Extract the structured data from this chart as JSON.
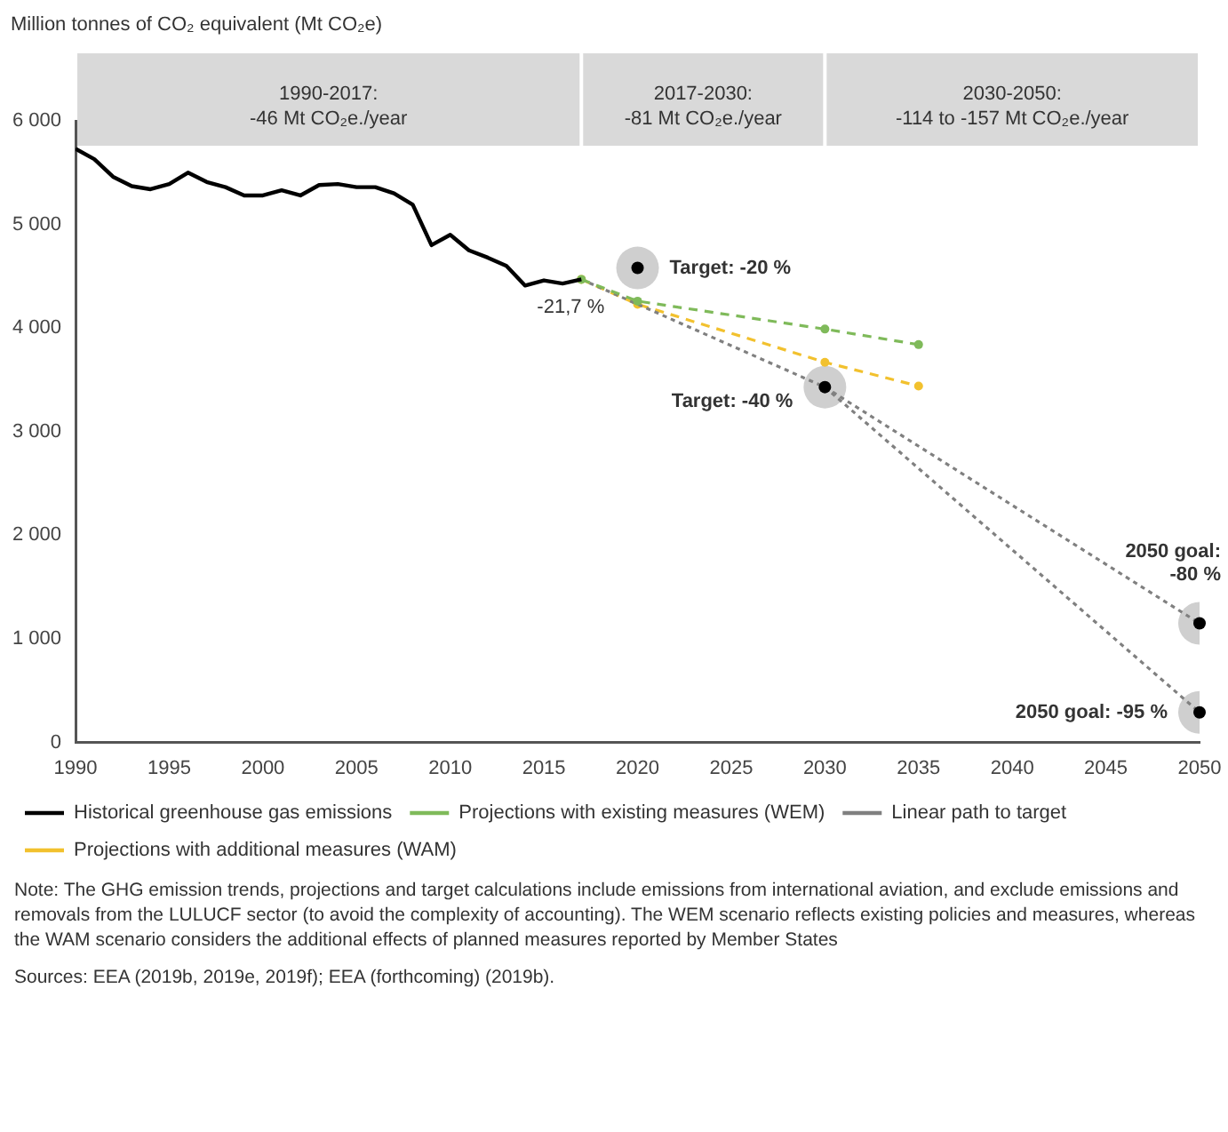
{
  "chart_data": {
    "type": "line",
    "ylabel": "Million tonnes of CO₂ equivalent (Mt CO₂e)",
    "xlim": [
      1990,
      2050
    ],
    "xticks": [
      1990,
      1995,
      2000,
      2005,
      2010,
      2015,
      2020,
      2025,
      2030,
      2035,
      2040,
      2045,
      2050
    ],
    "ylim": [
      0,
      6000
    ],
    "yticks": [
      {
        "value": 0,
        "label": "0"
      },
      {
        "value": 1000,
        "label": "1 000"
      },
      {
        "value": 2000,
        "label": "2 000"
      },
      {
        "value": 3000,
        "label": "3 000"
      },
      {
        "value": 4000,
        "label": "4 000"
      },
      {
        "value": 5000,
        "label": "5 000"
      },
      {
        "value": 6000,
        "label": "6 000"
      }
    ],
    "grid": false,
    "legend": "bottom",
    "series": [
      {
        "name": "Historical greenhouse gas emissions",
        "color": "#000000",
        "line_style": "solid",
        "marker": "none",
        "x": [
          1990,
          1991,
          1992,
          1993,
          1994,
          1995,
          1996,
          1997,
          1998,
          1999,
          2000,
          2001,
          2002,
          2003,
          2004,
          2005,
          2006,
          2007,
          2008,
          2009,
          2010,
          2011,
          2012,
          2013,
          2014,
          2015,
          2016,
          2017
        ],
        "values": [
          5730,
          5630,
          5460,
          5370,
          5340,
          5390,
          5500,
          5410,
          5360,
          5280,
          5280,
          5330,
          5280,
          5380,
          5390,
          5360,
          5360,
          5300,
          5190,
          4800,
          4900,
          4750,
          4680,
          4600,
          4410,
          4460,
          4430,
          4470
        ]
      },
      {
        "name": "Projections with existing measures (WEM)",
        "color": "#7fba5a",
        "line_style": "dashed",
        "marker": "circle",
        "x": [
          2017,
          2020,
          2030,
          2035
        ],
        "values": [
          4470,
          4260,
          3990,
          3840
        ]
      },
      {
        "name": "Linear path to target",
        "color": "#808080",
        "line_style": "dotted",
        "x": [
          2017,
          2030,
          2050
        ],
        "values": [
          4470,
          3430,
          1150
        ]
      },
      {
        "name": "Projections with additional measures (WAM)",
        "color": "#f2c12e",
        "line_style": "dashed",
        "marker": "circle",
        "x": [
          2017,
          2020,
          2030,
          2035
        ],
        "values": [
          4470,
          4230,
          3670,
          3440
        ]
      },
      {
        "color": "#808080",
        "line_style": "dotted",
        "x": [
          2030,
          2050
        ],
        "values": [
          3430,
          290
        ]
      },
      {
        "type": "scatter",
        "color": "#000000",
        "marker": "circle",
        "x": [
          2020,
          2030,
          2050,
          2050
        ],
        "values": [
          4580,
          3430,
          1150,
          290
        ]
      }
    ],
    "bands": [
      {
        "axis": "x",
        "from": 1990,
        "to": 2017,
        "label": "1990-2017:\n-46 Mt CO₂e./year",
        "color": "#d9d9d9"
      },
      {
        "axis": "x",
        "from": 2017,
        "to": 2030,
        "label": "2017-2030:\n-81 Mt CO₂e./year",
        "color": "#d9d9d9"
      },
      {
        "axis": "x",
        "from": 2030,
        "to": 2050,
        "label": "2030-2050:\n-114 to -157 Mt CO₂e./year",
        "color": "#d9d9d9"
      }
    ],
    "annotations": [
      {
        "text": "-21,7 %",
        "x": 2017,
        "y": 4470
      },
      {
        "text": "Target: -20 %",
        "x": 2020,
        "y": 4580
      },
      {
        "text": "Target: -40 %",
        "x": 2030,
        "y": 3430
      },
      {
        "text": "2050 goal:\n-80 %",
        "x": 2050,
        "y": 1150
      },
      {
        "text": "2050 goal: -95 %",
        "x": 2050,
        "y": 290
      },
      "Note: The GHG emission trends, projections and target calculations include emissions from international aviation, and exclude emissions and removals from the LULUCF sector (to avoid the complexity of accounting). The WEM scenario reflects existing policies and measures, whereas the WAM scenario considers the additional effects of planned measures reported by Member States",
      "Sources: EEA (2019b, 2019e, 2019f); EEA (forthcoming) (2019b)."
    ]
  }
}
